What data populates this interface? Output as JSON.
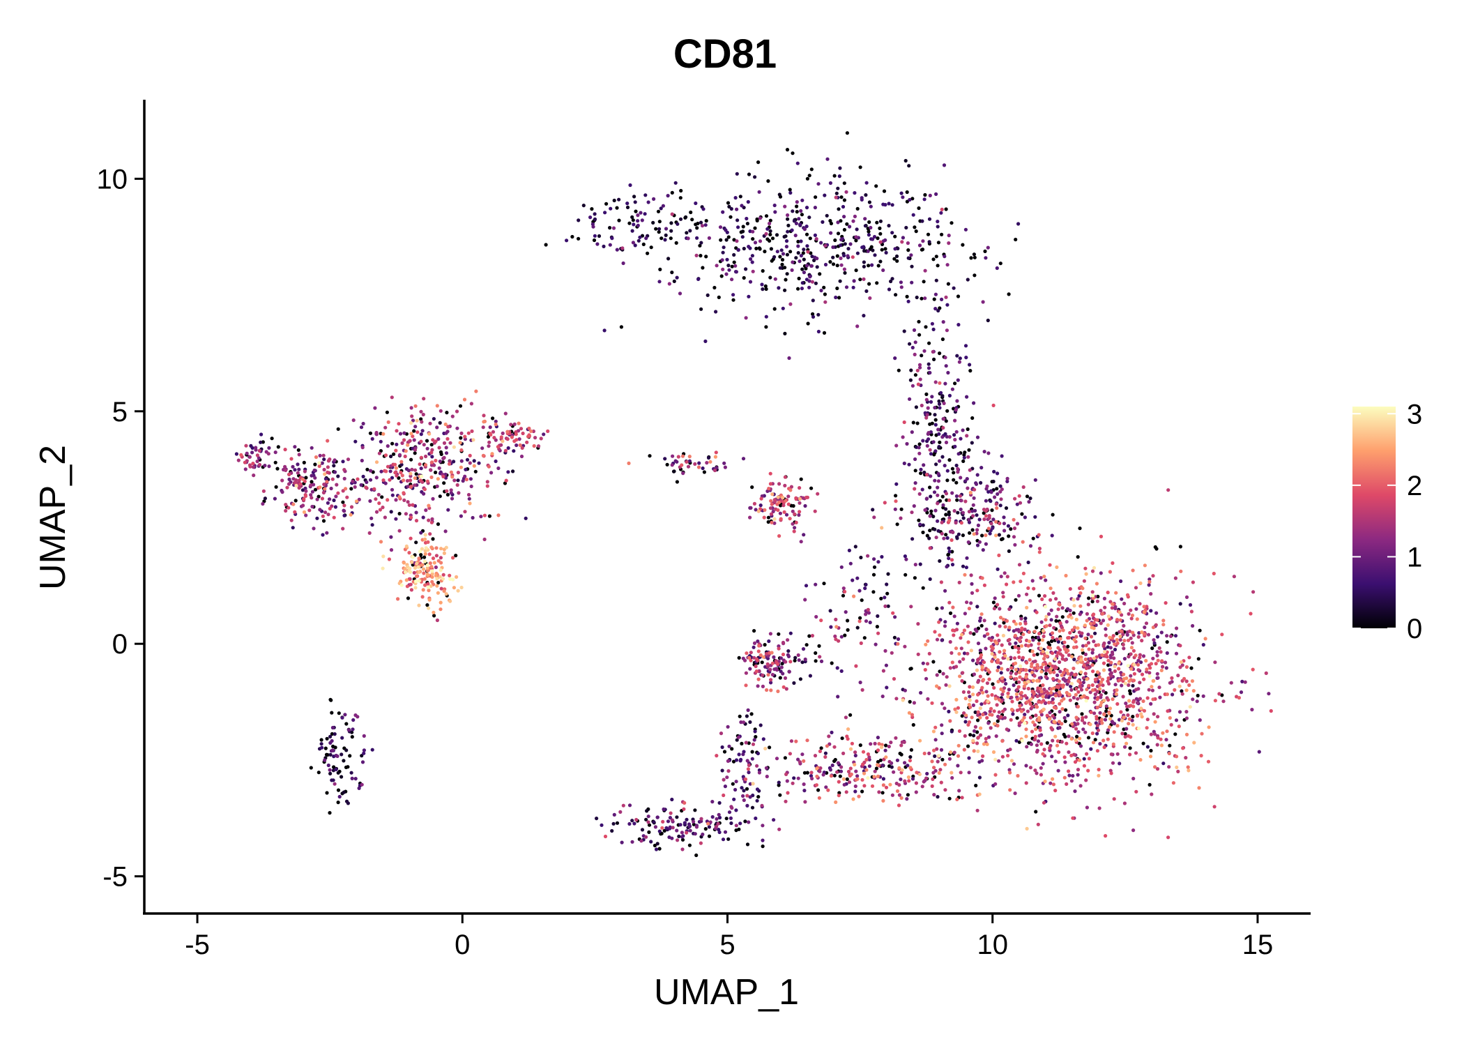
{
  "chart_data": {
    "type": "scatter",
    "title": "CD81",
    "xlabel": "UMAP_1",
    "ylabel": "UMAP_2",
    "xlim": [
      -6,
      16
    ],
    "ylim": [
      -5.8,
      11.7
    ],
    "xticks": [
      -5,
      0,
      5,
      10,
      15
    ],
    "xtick_labels": [
      "-5",
      "0",
      "5",
      "10",
      "15"
    ],
    "yticks": [
      -5,
      0,
      5,
      10
    ],
    "ytick_labels": [
      "-5",
      "0",
      "5",
      "10"
    ],
    "color_scale": {
      "name": "magma",
      "min": 0,
      "max": 3.1,
      "ticks": [
        0,
        1,
        2,
        3
      ],
      "tick_labels": [
        "0",
        "1",
        "2",
        "3"
      ],
      "stops": [
        "#000004",
        "#3b0f70",
        "#8c2981",
        "#de4968",
        "#fe9f6d",
        "#fcfdbf"
      ]
    },
    "legend_position": "right",
    "grid": false,
    "clusters": [
      {
        "name": "upper-right arc",
        "center": [
          6.8,
          8.6
        ],
        "spread": [
          1.9,
          1.0
        ],
        "n": 500,
        "expr_mean": 0.45,
        "expr_sd": 0.5
      },
      {
        "name": "upper-left arc tail",
        "center": [
          3.2,
          9.0
        ],
        "spread": [
          1.0,
          0.45
        ],
        "n": 100,
        "expr_mean": 0.35,
        "expr_sd": 0.4
      },
      {
        "name": "descending band",
        "center": [
          9.0,
          4.8
        ],
        "spread": [
          0.45,
          1.8
        ],
        "n": 240,
        "expr_mean": 0.7,
        "expr_sd": 0.55
      },
      {
        "name": "mid-right group",
        "center": [
          9.6,
          2.8
        ],
        "spread": [
          0.9,
          0.8
        ],
        "n": 230,
        "expr_mean": 0.9,
        "expr_sd": 0.6
      },
      {
        "name": "large lower-right cluster",
        "center": [
          11.3,
          -0.8
        ],
        "spread": [
          1.7,
          1.5
        ],
        "n": 1700,
        "expr_mean": 1.65,
        "expr_sd": 0.55
      },
      {
        "name": "lower bridge",
        "center": [
          7.6,
          -2.7
        ],
        "spread": [
          1.3,
          0.45
        ],
        "n": 260,
        "expr_mean": 1.5,
        "expr_sd": 0.6
      },
      {
        "name": "bottom tail",
        "center": [
          4.2,
          -3.9
        ],
        "spread": [
          0.9,
          0.3
        ],
        "n": 150,
        "expr_mean": 0.7,
        "expr_sd": 0.6
      },
      {
        "name": "bottom stem",
        "center": [
          5.3,
          -2.6
        ],
        "spread": [
          0.35,
          0.8
        ],
        "n": 80,
        "expr_mean": 0.8,
        "expr_sd": 0.55
      },
      {
        "name": "center-left small",
        "center": [
          6.0,
          3.0
        ],
        "spread": [
          0.35,
          0.35
        ],
        "n": 110,
        "expr_mean": 1.6,
        "expr_sd": 0.5
      },
      {
        "name": "center scatter",
        "center": [
          4.4,
          3.9
        ],
        "spread": [
          0.6,
          0.2
        ],
        "n": 45,
        "expr_mean": 1.0,
        "expr_sd": 0.7
      },
      {
        "name": "middle small group",
        "center": [
          5.8,
          -0.4
        ],
        "spread": [
          0.45,
          0.35
        ],
        "n": 130,
        "expr_mean": 1.2,
        "expr_sd": 0.6
      },
      {
        "name": "mid scatter",
        "center": [
          7.5,
          0.8
        ],
        "spread": [
          0.7,
          0.9
        ],
        "n": 90,
        "expr_mean": 1.1,
        "expr_sd": 0.7
      },
      {
        "name": "left cluster body",
        "center": [
          -0.8,
          3.8
        ],
        "spread": [
          0.9,
          0.9
        ],
        "n": 380,
        "expr_mean": 1.35,
        "expr_sd": 0.6
      },
      {
        "name": "left cluster arm",
        "center": [
          -0.7,
          1.5
        ],
        "spread": [
          0.35,
          0.5
        ],
        "n": 170,
        "expr_mean": 2.35,
        "expr_sd": 0.45
      },
      {
        "name": "left cluster west",
        "center": [
          -2.8,
          3.4
        ],
        "spread": [
          0.5,
          0.55
        ],
        "n": 180,
        "expr_mean": 1.25,
        "expr_sd": 0.55
      },
      {
        "name": "far-left edge",
        "center": [
          -3.9,
          4.0
        ],
        "spread": [
          0.25,
          0.25
        ],
        "n": 45,
        "expr_mean": 1.1,
        "expr_sd": 0.5
      },
      {
        "name": "left cluster east",
        "center": [
          0.9,
          4.4
        ],
        "spread": [
          0.4,
          0.25
        ],
        "n": 70,
        "expr_mean": 1.7,
        "expr_sd": 0.5
      },
      {
        "name": "lower-left thin stripe",
        "center": [
          -2.3,
          -2.5
        ],
        "spread": [
          0.3,
          0.75
        ],
        "n": 90,
        "expr_mean": 0.4,
        "expr_sd": 0.5
      }
    ]
  }
}
